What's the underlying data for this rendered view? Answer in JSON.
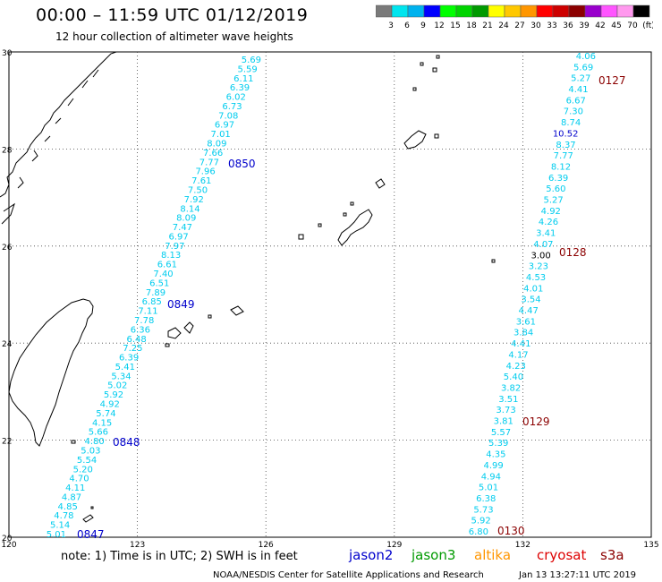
{
  "header": {
    "title": "00:00 – 11:59 UTC 01/12/2019",
    "subtitle": "12 hour collection of altimeter wave heights"
  },
  "scale": {
    "labels": [
      "3",
      "6",
      "9",
      "12",
      "15",
      "18",
      "21",
      "24",
      "27",
      "30",
      "33",
      "36",
      "39",
      "42",
      "45",
      "70",
      "(ft)"
    ],
    "colors": [
      "#7a7a7a",
      "#00e5ee",
      "#00b2ee",
      "#0000ff",
      "#00ff00",
      "#00d400",
      "#009a00",
      "#ffff00",
      "#ffc800",
      "#ff9600",
      "#ff0000",
      "#cd0000",
      "#8b0000",
      "#9900cc",
      "#ff55ff",
      "#ff99ee",
      "#000000"
    ]
  },
  "map": {
    "lat_labels": [
      "30",
      "28",
      "26",
      "24",
      "22",
      "20"
    ],
    "lon_labels": [
      "120",
      "123",
      "126",
      "129",
      "132",
      "135"
    ]
  },
  "colors": {
    "cyan": "#00ccee",
    "blue": "#0000cc",
    "maroon": "#8b0000",
    "black": "#000000"
  },
  "track_west": {
    "values": [
      "5.69",
      "5.59",
      "6.11",
      "6.39",
      "6.02",
      "6.73",
      "7.08",
      "6.97",
      "7.01",
      "8.09",
      "7.66",
      "7.77",
      "7.96",
      "7.61",
      "7.50",
      "7.92",
      "8.14",
      "8.09",
      "7.47",
      "6.97",
      "7.97",
      "8.13",
      "6.61",
      "7.40",
      "6.51",
      "7.89",
      "6.85",
      "7.11",
      "7.78",
      "6.36",
      "6.48",
      "7.25",
      "6.39",
      "5.41",
      "5.34",
      "5.02",
      "5.92",
      "4.92",
      "5.74",
      "4.15",
      "5.66",
      "4.80",
      "5.03",
      "5.54",
      "5.20",
      "4.70",
      "4.11",
      "4.87",
      "4.85",
      "4.78",
      "5.14",
      "5.01"
    ],
    "times": [
      "0850",
      "0849",
      "0848",
      "0847"
    ]
  },
  "track_east": {
    "values": [
      "4.06",
      "5.69",
      "5.27",
      "4.41",
      "6.67",
      "7.30",
      "8.74",
      "10.52",
      "8.37",
      "7.77",
      "8.12",
      "6.39",
      "5.60",
      "5.27",
      "4.92",
      "4.26",
      "3.41",
      "4.07",
      "3.00",
      "3.23",
      "4.53",
      "4.01",
      "3.54",
      "4.47",
      "3.61",
      "3.84",
      "4.41",
      "4.17",
      "4.23",
      "5.40",
      "3.82",
      "3.51",
      "3.73",
      "3.81",
      "5.57",
      "5.39",
      "4.35",
      "4.99",
      "4.94",
      "5.01",
      "6.38",
      "5.73",
      "5.92",
      "6.80"
    ],
    "times": [
      "0127",
      "0128",
      "0129",
      "0130"
    ]
  },
  "legend": {
    "note": "note: 1) Time is in UTC; 2) SWH is in feet",
    "satellites": [
      {
        "name": "jason2",
        "color": "#0000cc"
      },
      {
        "name": "jason3",
        "color": "#009a00"
      },
      {
        "name": "altika",
        "color": "#ff9600"
      },
      {
        "name": "cryosat",
        "color": "#dd0000"
      },
      {
        "name": "s3a",
        "color": "#8b0000"
      }
    ]
  },
  "footer": {
    "credit": "NOAA/NESDIS Center for Satellite Applications and Research",
    "timestamp": "Jan 13 13:27:11 UTC 2019"
  }
}
